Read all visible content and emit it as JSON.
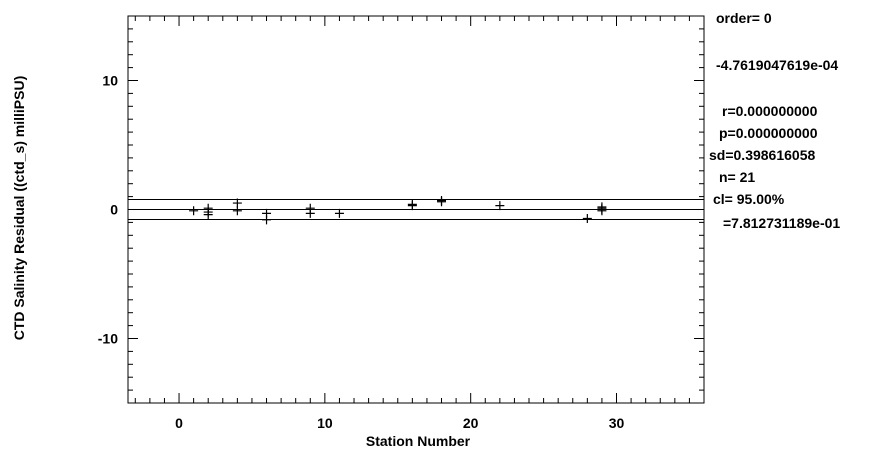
{
  "chart_data": {
    "type": "scatter",
    "xlabel": "Station Number",
    "ylabel": "CTD Salinity Residual ((ctd_s) milliPSU)",
    "xlim": [
      -3.5,
      36
    ],
    "ylim": [
      -15,
      15
    ],
    "xticks": [
      0,
      10,
      20,
      30
    ],
    "yticks": [
      -10,
      0,
      10
    ],
    "x_minor_step": 1,
    "y_minor_step": 1,
    "grid": false,
    "marker": "plus",
    "color": "#000000",
    "points": [
      {
        "x": 1,
        "y": -0.1
      },
      {
        "x": 2,
        "y": 0.1
      },
      {
        "x": 2,
        "y": -0.2
      },
      {
        "x": 2,
        "y": -0.4
      },
      {
        "x": 4,
        "y": 0.5
      },
      {
        "x": 4,
        "y": -0.1
      },
      {
        "x": 6,
        "y": -0.3
      },
      {
        "x": 6,
        "y": -0.8
      },
      {
        "x": 9,
        "y": 0.1
      },
      {
        "x": 9,
        "y": -0.3
      },
      {
        "x": 11,
        "y": -0.3
      },
      {
        "x": 16,
        "y": 0.4
      },
      {
        "x": 16,
        "y": 0.3
      },
      {
        "x": 18,
        "y": 0.7
      },
      {
        "x": 18,
        "y": 0.6
      },
      {
        "x": 22,
        "y": 0.3
      },
      {
        "x": 28,
        "y": -0.7
      },
      {
        "x": 29,
        "y": 0.2
      },
      {
        "x": 29,
        "y": 0.0
      },
      {
        "x": 29,
        "y": -0.1
      },
      {
        "x": 29,
        "y": 0.1
      }
    ],
    "hlines": [
      0.78,
      0.0,
      -0.78
    ],
    "annotations": [
      "order= 0",
      "-4.7619047619e-04",
      "r=0.000000000",
      "p=0.000000000",
      "sd=0.398616058",
      "n=   21",
      "cl=  95.00%",
      "=7.812731189e-01"
    ]
  }
}
